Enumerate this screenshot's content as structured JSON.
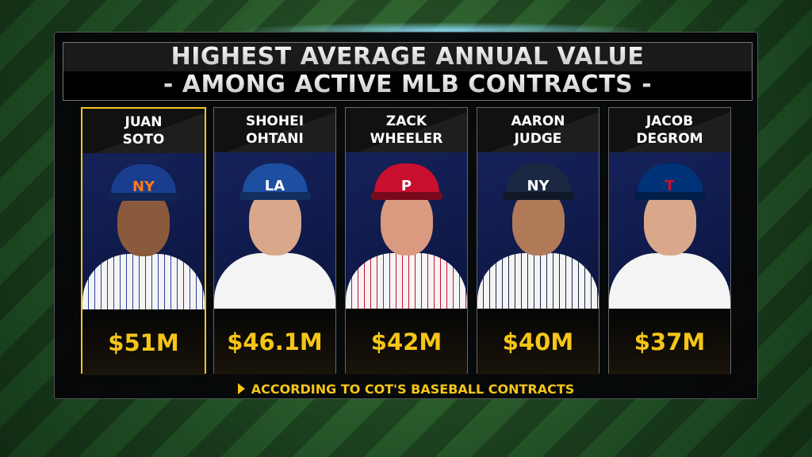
{
  "title": {
    "line1": "HIGHEST AVERAGE ANNUAL VALUE",
    "line2": "- AMONG ACTIVE MLB CONTRACTS -"
  },
  "players": [
    {
      "first": "JUAN",
      "last": "SOTO",
      "value": "$51M",
      "logo": "NY",
      "cap_color": "#1a3d8f",
      "logo_color": "#ff7a1a",
      "skin": "#8a5a3c",
      "selected": true
    },
    {
      "first": "SHOHEI",
      "last": "OHTANI",
      "value": "$46.1M",
      "logo": "LA",
      "cap_color": "#1d4ea0",
      "logo_color": "#ffffff",
      "skin": "#d9a88a",
      "selected": false
    },
    {
      "first": "ZACK",
      "last": "WHEELER",
      "value": "$42M",
      "logo": "P",
      "cap_color": "#c8102e",
      "logo_color": "#ffffff",
      "skin": "#d99a80",
      "selected": false
    },
    {
      "first": "AARON",
      "last": "JUDGE",
      "value": "$40M",
      "logo": "NY",
      "cap_color": "#1c2841",
      "logo_color": "#ffffff",
      "skin": "#b07a58",
      "selected": false
    },
    {
      "first": "JACOB",
      "last": "DEGROM",
      "value": "$37M",
      "logo": "T",
      "cap_color": "#003278",
      "logo_color": "#c8102e",
      "skin": "#d9a88a",
      "selected": false
    }
  ],
  "footer": "ACCORDING TO COT'S BASEBALL CONTRACTS",
  "colors": {
    "accent": "#f5c518",
    "highlight_border": "#f2c81c"
  }
}
